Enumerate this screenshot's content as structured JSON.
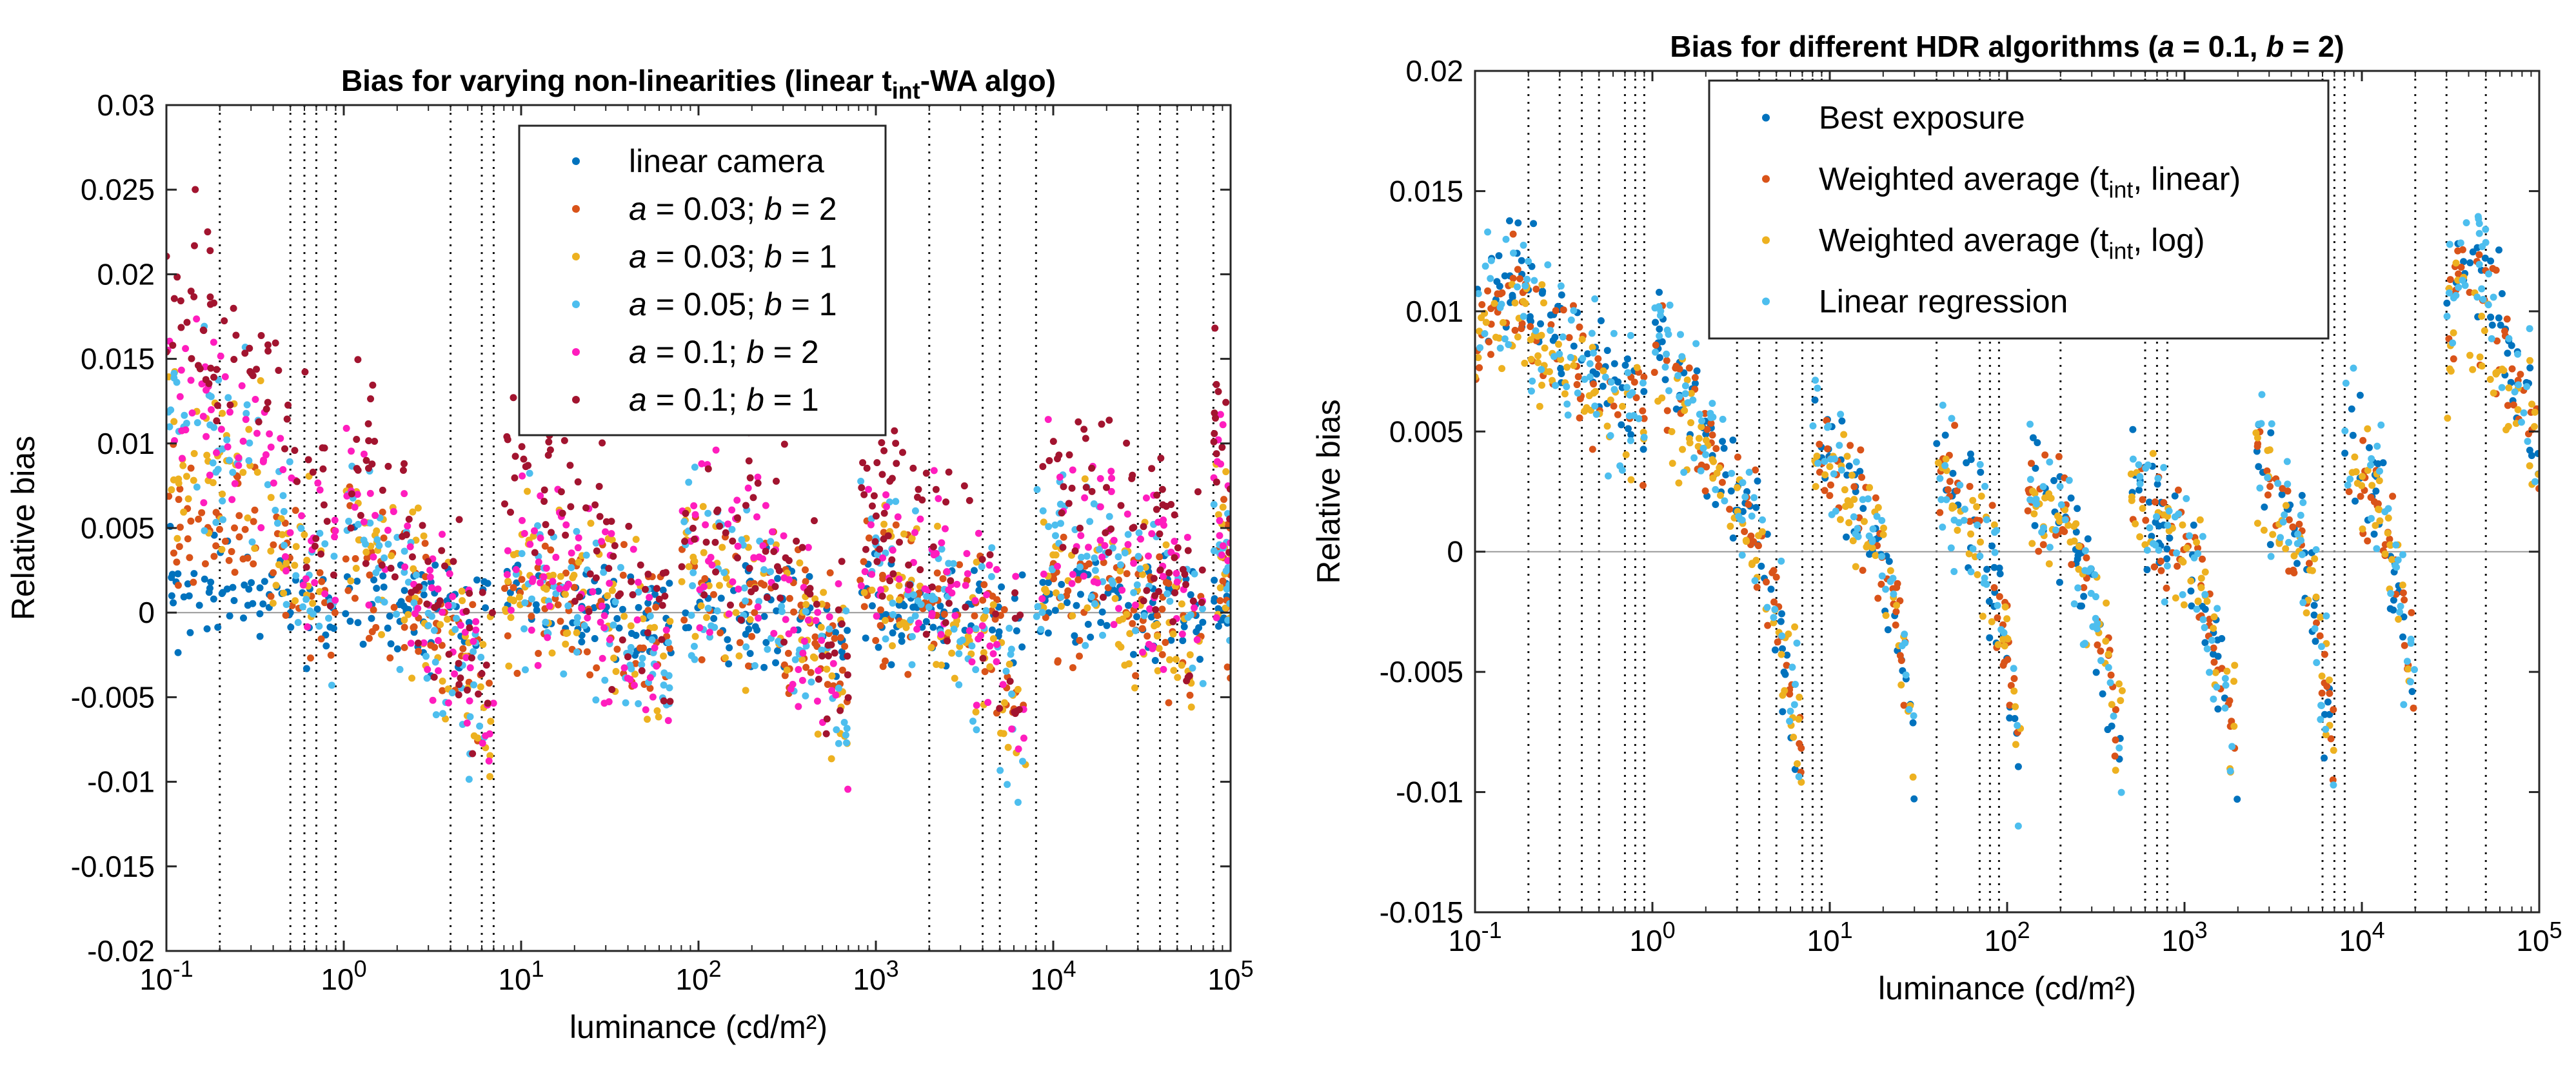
{
  "chart_data": [
    {
      "type": "scatter",
      "title_parts": [
        {
          "t": "Bias for varying non-linearities (linear t"
        },
        {
          "t": "int",
          "sub": true
        },
        {
          "t": "-WA algo)"
        }
      ],
      "xlabel": "luminance (cd/m²)",
      "ylabel": "Relative bias",
      "xscale": "log",
      "xlim": [
        0.1,
        100000
      ],
      "ylim": [
        -0.02,
        0.03
      ],
      "xticks": [
        {
          "value": 0.1,
          "base": "10",
          "exp": "-1"
        },
        {
          "value": 1,
          "base": "10",
          "exp": "0"
        },
        {
          "value": 10,
          "base": "10",
          "exp": "1"
        },
        {
          "value": 100,
          "base": "10",
          "exp": "2"
        },
        {
          "value": 1000,
          "base": "10",
          "exp": "3"
        },
        {
          "value": 10000,
          "base": "10",
          "exp": "4"
        },
        {
          "value": 100000,
          "base": "10",
          "exp": "5"
        }
      ],
      "yticks": [
        {
          "value": -0.02,
          "label": "-0.02"
        },
        {
          "value": -0.015,
          "label": "-0.015"
        },
        {
          "value": -0.01,
          "label": "-0.01"
        },
        {
          "value": -0.005,
          "label": "-0.005"
        },
        {
          "value": 0,
          "label": "0"
        },
        {
          "value": 0.005,
          "label": "0.005"
        },
        {
          "value": 0.01,
          "label": "0.01"
        },
        {
          "value": 0.015,
          "label": "0.015"
        },
        {
          "value": 0.02,
          "label": "0.02"
        },
        {
          "value": 0.025,
          "label": "0.025"
        },
        {
          "value": 0.03,
          "label": "0.03"
        }
      ],
      "legend_position": "top-center",
      "vlines": [
        0.2,
        0.5,
        0.6,
        0.7,
        0.9,
        4,
        6,
        7,
        2000,
        4000,
        5000,
        8000,
        30000,
        40000,
        50000,
        80000
      ],
      "segments": [
        {
          "start": 0.1,
          "end": 0.9,
          "bias": [
            0.012,
            0.01,
            0.009,
            0.009,
            0.006,
            0.003,
            0.0
          ]
        },
        {
          "start": 1,
          "end": 7,
          "bias": [
            0.006,
            0.004,
            0.002,
            0.0005,
            -0.002,
            -0.004,
            -0.0065
          ]
        },
        {
          "start": 8,
          "end": 70,
          "bias": [
            0.003,
            0.002,
            0.0015,
            0.0005,
            -0.001,
            -0.003,
            -0.0055
          ]
        },
        {
          "start": 80,
          "end": 700,
          "bias": [
            0.003,
            0.002,
            0.0015,
            0.0005,
            -0.001,
            -0.003,
            -0.0055
          ]
        },
        {
          "start": 800,
          "end": 7000,
          "bias": [
            0.003,
            0.002,
            0.0015,
            0.0005,
            -0.001,
            -0.003,
            -0.0065
          ]
        },
        {
          "start": 8000,
          "end": 70000,
          "bias": [
            0.004,
            0.003,
            0.0025,
            0.002,
            0.001,
            0.0,
            -0.002
          ]
        },
        {
          "start": 80000,
          "end": 100000,
          "bias": [
            0.006,
            0.005,
            0.004,
            0.002
          ]
        }
      ],
      "series": [
        {
          "legend": [
            {
              "t": "linear camera"
            }
          ],
          "color": "#0072BD",
          "scale": 0.15,
          "offset": 0.0,
          "noise": 0.0015,
          "seed": 11
        },
        {
          "legend": [
            {
              "t": "a",
              "i": true
            },
            {
              "t": " = 0.03; "
            },
            {
              "t": "b",
              "i": true
            },
            {
              "t": " = 2"
            }
          ],
          "color": "#D95319",
          "scale": 0.55,
          "offset": 0.0,
          "noise": 0.0022,
          "seed": 23
        },
        {
          "legend": [
            {
              "t": "a",
              "i": true
            },
            {
              "t": " = 0.03; "
            },
            {
              "t": "b",
              "i": true
            },
            {
              "t": " = 1"
            }
          ],
          "color": "#EDB120",
          "scale": 0.85,
          "offset": 0.0,
          "noise": 0.0025,
          "seed": 37
        },
        {
          "legend": [
            {
              "t": "a",
              "i": true
            },
            {
              "t": " = 0.05; "
            },
            {
              "t": "b",
              "i": true
            },
            {
              "t": " = 1"
            }
          ],
          "color": "#4DBEEE",
          "scale": 1.05,
          "offset": 0.0,
          "noise": 0.0025,
          "seed": 41
        },
        {
          "legend": [
            {
              "t": "a",
              "i": true
            },
            {
              "t": " = 0.1; "
            },
            {
              "t": "b",
              "i": true
            },
            {
              "t": " = 2"
            }
          ],
          "color": "#FF1DBE",
          "scale": 1.1,
          "offset": 0.0015,
          "noise": 0.0028,
          "seed": 53
        },
        {
          "legend": [
            {
              "t": "a",
              "i": true
            },
            {
              "t": " = 0.1; "
            },
            {
              "t": "b",
              "i": true
            },
            {
              "t": " = 1"
            }
          ],
          "color": "#A2142F",
          "scale": 1.3,
          "offset": 0.004,
          "noise": 0.003,
          "seed": 67
        }
      ]
    },
    {
      "type": "scatter",
      "title_parts": [
        {
          "t": "Bias for different HDR algorithms ("
        },
        {
          "t": "a",
          "i": true
        },
        {
          "t": " = 0.1, "
        },
        {
          "t": "b",
          "i": true
        },
        {
          "t": " = 2)"
        }
      ],
      "xlabel": "luminance (cd/m²)",
      "ylabel": "Relative bias",
      "xscale": "log",
      "xlim": [
        0.1,
        100000
      ],
      "ylim": [
        -0.015,
        0.02
      ],
      "xticks": [
        {
          "value": 0.1,
          "base": "10",
          "exp": "-1"
        },
        {
          "value": 1,
          "base": "10",
          "exp": "0"
        },
        {
          "value": 10,
          "base": "10",
          "exp": "1"
        },
        {
          "value": 100,
          "base": "10",
          "exp": "2"
        },
        {
          "value": 1000,
          "base": "10",
          "exp": "3"
        },
        {
          "value": 10000,
          "base": "10",
          "exp": "4"
        },
        {
          "value": 100000,
          "base": "10",
          "exp": "5"
        }
      ],
      "yticks": [
        {
          "value": -0.015,
          "label": "-0.015"
        },
        {
          "value": -0.01,
          "label": "-0.01"
        },
        {
          "value": -0.005,
          "label": "-0.005"
        },
        {
          "value": 0,
          "label": "0"
        },
        {
          "value": 0.005,
          "label": "0.005"
        },
        {
          "value": 0.01,
          "label": "0.01"
        },
        {
          "value": 0.015,
          "label": "0.015"
        },
        {
          "value": 0.02,
          "label": "0.02"
        }
      ],
      "legend_position": "top-center",
      "vlines": [
        0.2,
        0.3,
        0.4,
        0.5,
        0.7,
        0.8,
        0.9,
        3,
        4,
        5,
        7,
        8,
        9,
        40,
        70,
        80,
        90,
        200,
        600,
        700,
        800,
        6000,
        7000,
        8000,
        20000,
        30000,
        50000
      ],
      "segments": [
        {
          "start": 0.1,
          "end": 0.9,
          "bias": [
            0.01,
            0.011,
            0.009,
            0.007,
            0.006
          ]
        },
        {
          "start": 1,
          "end": 7,
          "bias": [
            0.009,
            0.007,
            0.005,
            0.003,
            0.001,
            -0.003,
            -0.008
          ]
        },
        {
          "start": 8,
          "end": 30,
          "bias": [
            0.005,
            0.004,
            0.003,
            0.002,
            0.0,
            -0.003,
            -0.008
          ]
        },
        {
          "start": 40,
          "end": 120,
          "bias": [
            0.004,
            0.003,
            0.002,
            0.001,
            -0.001,
            -0.004,
            -0.009
          ]
        },
        {
          "start": 130,
          "end": 450,
          "bias": [
            0.003,
            0.002,
            0.0015,
            0.0005,
            -0.002,
            -0.005,
            -0.009
          ]
        },
        {
          "start": 500,
          "end": 2000,
          "bias": [
            0.003,
            0.002,
            0.001,
            0.0,
            -0.002,
            -0.005,
            -0.009
          ]
        },
        {
          "start": 2500,
          "end": 7000,
          "bias": [
            0.004,
            0.003,
            0.002,
            0.001,
            -0.001,
            -0.004,
            -0.009
          ]
        },
        {
          "start": 8000,
          "end": 20000,
          "bias": [
            0.005,
            0.004,
            0.003,
            0.001,
            -0.002,
            -0.006
          ]
        },
        {
          "start": 30000,
          "end": 100000,
          "bias": [
            0.01,
            0.012,
            0.011,
            0.009,
            0.007,
            0.005
          ]
        }
      ],
      "series": [
        {
          "legend": [
            {
              "t": "Best exposure"
            }
          ],
          "color": "#0072BD",
          "scale": 1.05,
          "offset": 0.0,
          "noise": 0.0012,
          "seed": 101
        },
        {
          "legend": [
            {
              "t": "Weighted average (t"
            },
            {
              "t": "int",
              "sub": true
            },
            {
              "t": ", linear)"
            }
          ],
          "color": "#D95319",
          "scale": 0.95,
          "offset": 0.0,
          "noise": 0.0012,
          "seed": 113
        },
        {
          "legend": [
            {
              "t": "Weighted average (t"
            },
            {
              "t": "int",
              "sub": true
            },
            {
              "t": ", log)"
            }
          ],
          "color": "#EDB120",
          "scale": 0.9,
          "offset": -0.0003,
          "noise": 0.0012,
          "seed": 127
        },
        {
          "legend": [
            {
              "t": "Linear regression"
            }
          ],
          "color": "#4DBEEE",
          "scale": 1.0,
          "offset": 0.0,
          "noise": 0.0015,
          "seed": 131
        }
      ]
    }
  ]
}
